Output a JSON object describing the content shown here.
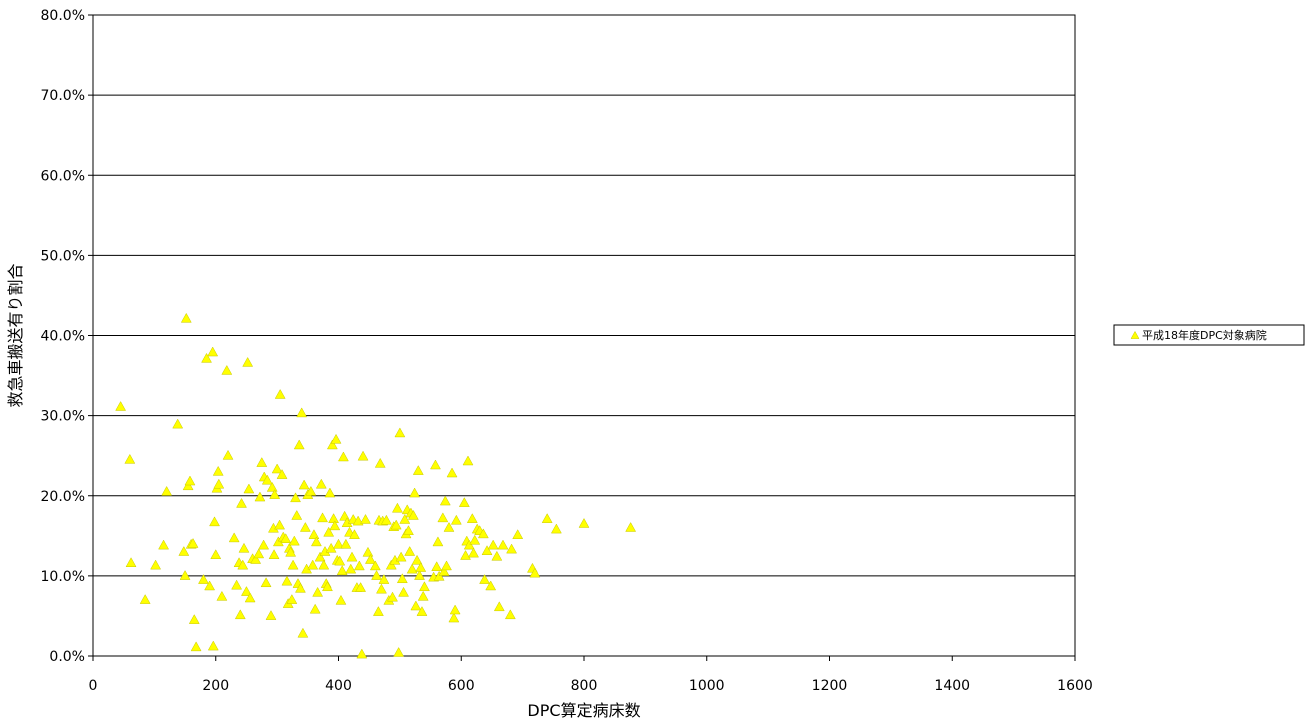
{
  "chart_data": {
    "type": "scatter",
    "title": "",
    "xlabel": "DPC算定病床数",
    "ylabel": "救急車搬送有り割合",
    "xlim": [
      0,
      1600
    ],
    "ylim": [
      0,
      80
    ],
    "x_ticks": [
      "0",
      "200",
      "400",
      "600",
      "800",
      "1000",
      "1200",
      "1400",
      "1600"
    ],
    "y_ticks": [
      "0.0%",
      "10.0%",
      "20.0%",
      "30.0%",
      "40.0%",
      "50.0%",
      "60.0%",
      "70.0%",
      "80.0%"
    ],
    "grid": "horizontal",
    "legend_position": "right",
    "marker_color": "#FFFF00",
    "series": [
      {
        "name": "平成18年度DPC対象病院",
        "marker": "triangle",
        "points": [
          [
            45,
            31.2
          ],
          [
            60,
            24.6
          ],
          [
            62,
            11.7
          ],
          [
            85,
            7.1
          ],
          [
            102,
            11.4
          ],
          [
            115,
            13.9
          ],
          [
            120,
            20.6
          ],
          [
            138,
            29.0
          ],
          [
            148,
            13.1
          ],
          [
            150,
            10.1
          ],
          [
            152,
            42.2
          ],
          [
            155,
            21.3
          ],
          [
            158,
            21.9
          ],
          [
            160,
            14.0
          ],
          [
            163,
            14.1
          ],
          [
            165,
            4.6
          ],
          [
            168,
            1.2
          ],
          [
            180,
            9.6
          ],
          [
            185,
            37.2
          ],
          [
            190,
            8.8
          ],
          [
            195,
            38.0
          ],
          [
            196,
            1.3
          ],
          [
            198,
            16.8
          ],
          [
            200,
            12.7
          ],
          [
            202,
            21.0
          ],
          [
            204,
            23.1
          ],
          [
            205,
            21.5
          ],
          [
            210,
            7.5
          ],
          [
            218,
            35.7
          ],
          [
            220,
            25.1
          ],
          [
            230,
            14.8
          ],
          [
            234,
            8.9
          ],
          [
            238,
            11.7
          ],
          [
            240,
            5.2
          ],
          [
            242,
            19.1
          ],
          [
            244,
            11.4
          ],
          [
            246,
            13.5
          ],
          [
            250,
            8.1
          ],
          [
            252,
            36.7
          ],
          [
            254,
            20.9
          ],
          [
            256,
            7.3
          ],
          [
            260,
            12.2
          ],
          [
            265,
            12.1
          ],
          [
            270,
            12.8
          ],
          [
            272,
            19.9
          ],
          [
            275,
            24.2
          ],
          [
            278,
            13.9
          ],
          [
            279,
            22.4
          ],
          [
            282,
            9.2
          ],
          [
            284,
            22.0
          ],
          [
            290,
            5.1
          ],
          [
            292,
            21.1
          ],
          [
            294,
            16.0
          ],
          [
            295,
            12.7
          ],
          [
            296,
            20.2
          ],
          [
            300,
            23.4
          ],
          [
            302,
            14.3
          ],
          [
            304,
            16.4
          ],
          [
            305,
            32.7
          ],
          [
            308,
            22.7
          ],
          [
            310,
            14.9
          ],
          [
            314,
            14.7
          ],
          [
            316,
            9.4
          ],
          [
            318,
            6.6
          ],
          [
            320,
            13.5
          ],
          [
            322,
            13.0
          ],
          [
            324,
            7.1
          ],
          [
            326,
            11.4
          ],
          [
            328,
            14.4
          ],
          [
            330,
            19.8
          ],
          [
            332,
            17.6
          ],
          [
            334,
            9.1
          ],
          [
            336,
            26.4
          ],
          [
            338,
            8.5
          ],
          [
            340,
            30.4
          ],
          [
            342,
            2.9
          ],
          [
            344,
            21.4
          ],
          [
            346,
            16.1
          ],
          [
            348,
            10.9
          ],
          [
            350,
            20.2
          ],
          [
            355,
            20.6
          ],
          [
            358,
            11.4
          ],
          [
            360,
            15.2
          ],
          [
            362,
            5.9
          ],
          [
            364,
            14.3
          ],
          [
            366,
            8.0
          ],
          [
            370,
            12.4
          ],
          [
            372,
            21.5
          ],
          [
            374,
            17.3
          ],
          [
            376,
            11.4
          ],
          [
            378,
            13.1
          ],
          [
            380,
            9.1
          ],
          [
            382,
            8.7
          ],
          [
            384,
            15.5
          ],
          [
            386,
            20.4
          ],
          [
            388,
            13.5
          ],
          [
            390,
            26.4
          ],
          [
            392,
            17.2
          ],
          [
            394,
            16.3
          ],
          [
            396,
            27.1
          ],
          [
            398,
            12.0
          ],
          [
            400,
            14.0
          ],
          [
            402,
            11.9
          ],
          [
            404,
            7.0
          ],
          [
            406,
            10.7
          ],
          [
            408,
            24.9
          ],
          [
            410,
            17.5
          ],
          [
            412,
            14.0
          ],
          [
            414,
            16.7
          ],
          [
            418,
            15.5
          ],
          [
            420,
            10.9
          ],
          [
            422,
            12.4
          ],
          [
            424,
            17.1
          ],
          [
            426,
            15.2
          ],
          [
            430,
            8.6
          ],
          [
            432,
            16.9
          ],
          [
            434,
            11.3
          ],
          [
            436,
            8.6
          ],
          [
            438,
            0.3
          ],
          [
            440,
            25.0
          ],
          [
            444,
            17.1
          ],
          [
            448,
            13.0
          ],
          [
            452,
            12.1
          ],
          [
            460,
            11.3
          ],
          [
            462,
            10.1
          ],
          [
            465,
            5.6
          ],
          [
            466,
            17.0
          ],
          [
            468,
            24.1
          ],
          [
            470,
            8.4
          ],
          [
            472,
            16.9
          ],
          [
            474,
            9.6
          ],
          [
            478,
            17.0
          ],
          [
            482,
            7.0
          ],
          [
            486,
            11.4
          ],
          [
            488,
            7.4
          ],
          [
            490,
            16.2
          ],
          [
            492,
            12.0
          ],
          [
            494,
            16.4
          ],
          [
            496,
            18.5
          ],
          [
            498,
            0.5
          ],
          [
            500,
            27.9
          ],
          [
            502,
            12.4
          ],
          [
            504,
            9.7
          ],
          [
            506,
            8.0
          ],
          [
            508,
            17.1
          ],
          [
            510,
            15.3
          ],
          [
            512,
            18.3
          ],
          [
            514,
            15.7
          ],
          [
            516,
            13.1
          ],
          [
            518,
            17.9
          ],
          [
            520,
            10.9
          ],
          [
            522,
            17.6
          ],
          [
            524,
            20.4
          ],
          [
            526,
            6.3
          ],
          [
            528,
            12.0
          ],
          [
            530,
            23.2
          ],
          [
            532,
            10.1
          ],
          [
            534,
            11.1
          ],
          [
            536,
            5.6
          ],
          [
            538,
            7.5
          ],
          [
            540,
            8.7
          ],
          [
            555,
            9.9
          ],
          [
            558,
            23.9
          ],
          [
            560,
            11.2
          ],
          [
            562,
            14.3
          ],
          [
            564,
            10.0
          ],
          [
            570,
            17.3
          ],
          [
            572,
            10.6
          ],
          [
            574,
            19.4
          ],
          [
            576,
            11.3
          ],
          [
            580,
            16.1
          ],
          [
            585,
            22.9
          ],
          [
            588,
            4.8
          ],
          [
            590,
            5.8
          ],
          [
            592,
            17.0
          ],
          [
            605,
            19.2
          ],
          [
            607,
            12.6
          ],
          [
            609,
            14.4
          ],
          [
            611,
            24.4
          ],
          [
            613,
            13.9
          ],
          [
            618,
            17.2
          ],
          [
            620,
            12.9
          ],
          [
            622,
            14.5
          ],
          [
            626,
            15.9
          ],
          [
            630,
            15.7
          ],
          [
            636,
            15.3
          ],
          [
            638,
            9.6
          ],
          [
            642,
            13.2
          ],
          [
            648,
            8.8
          ],
          [
            652,
            13.9
          ],
          [
            658,
            12.5
          ],
          [
            662,
            6.2
          ],
          [
            668,
            13.9
          ],
          [
            680,
            5.2
          ],
          [
            682,
            13.4
          ],
          [
            692,
            15.2
          ],
          [
            716,
            11.0
          ],
          [
            720,
            10.4
          ],
          [
            740,
            17.2
          ],
          [
            755,
            15.9
          ],
          [
            800,
            16.6
          ],
          [
            876,
            16.1
          ]
        ]
      }
    ]
  }
}
